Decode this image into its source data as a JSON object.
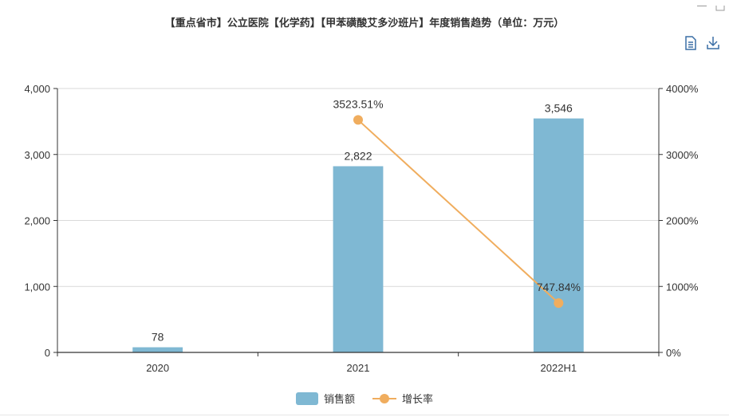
{
  "colors": {
    "bar": "#7fb8d3",
    "line": "#f0ad5e",
    "axis": "#333333",
    "grid": "#d9d9d9",
    "text": "#333333"
  },
  "toolbox": {
    "icons": [
      "data-view-icon",
      "download-icon"
    ]
  },
  "chart_data": {
    "type": "bar",
    "title": "【重点省市】公立医院【化学药】【甲苯磺酸艾多沙班片】年度销售趋势（单位：万元）",
    "categories": [
      "2020",
      "2021",
      "2022H1"
    ],
    "y_ticks": [
      "0",
      "1,000",
      "2,000",
      "3,000",
      "4,000"
    ],
    "y2_ticks": [
      "0%",
      "1000%",
      "2000%",
      "3000%",
      "4000%"
    ],
    "ylim": [
      0,
      4000
    ],
    "y2lim": [
      0,
      4000
    ],
    "grid": true,
    "legend_position": "bottom-center",
    "series": [
      {
        "name": "销售额",
        "type": "bar",
        "axis": "left",
        "values": [
          78,
          2822,
          3546
        ],
        "labels": [
          "78",
          "2,822",
          "3,546"
        ]
      },
      {
        "name": "增长率",
        "type": "line",
        "axis": "right",
        "values": [
          null,
          3523.51,
          747.84
        ],
        "labels": [
          "",
          "3523.51%",
          "747.84%"
        ]
      }
    ]
  }
}
